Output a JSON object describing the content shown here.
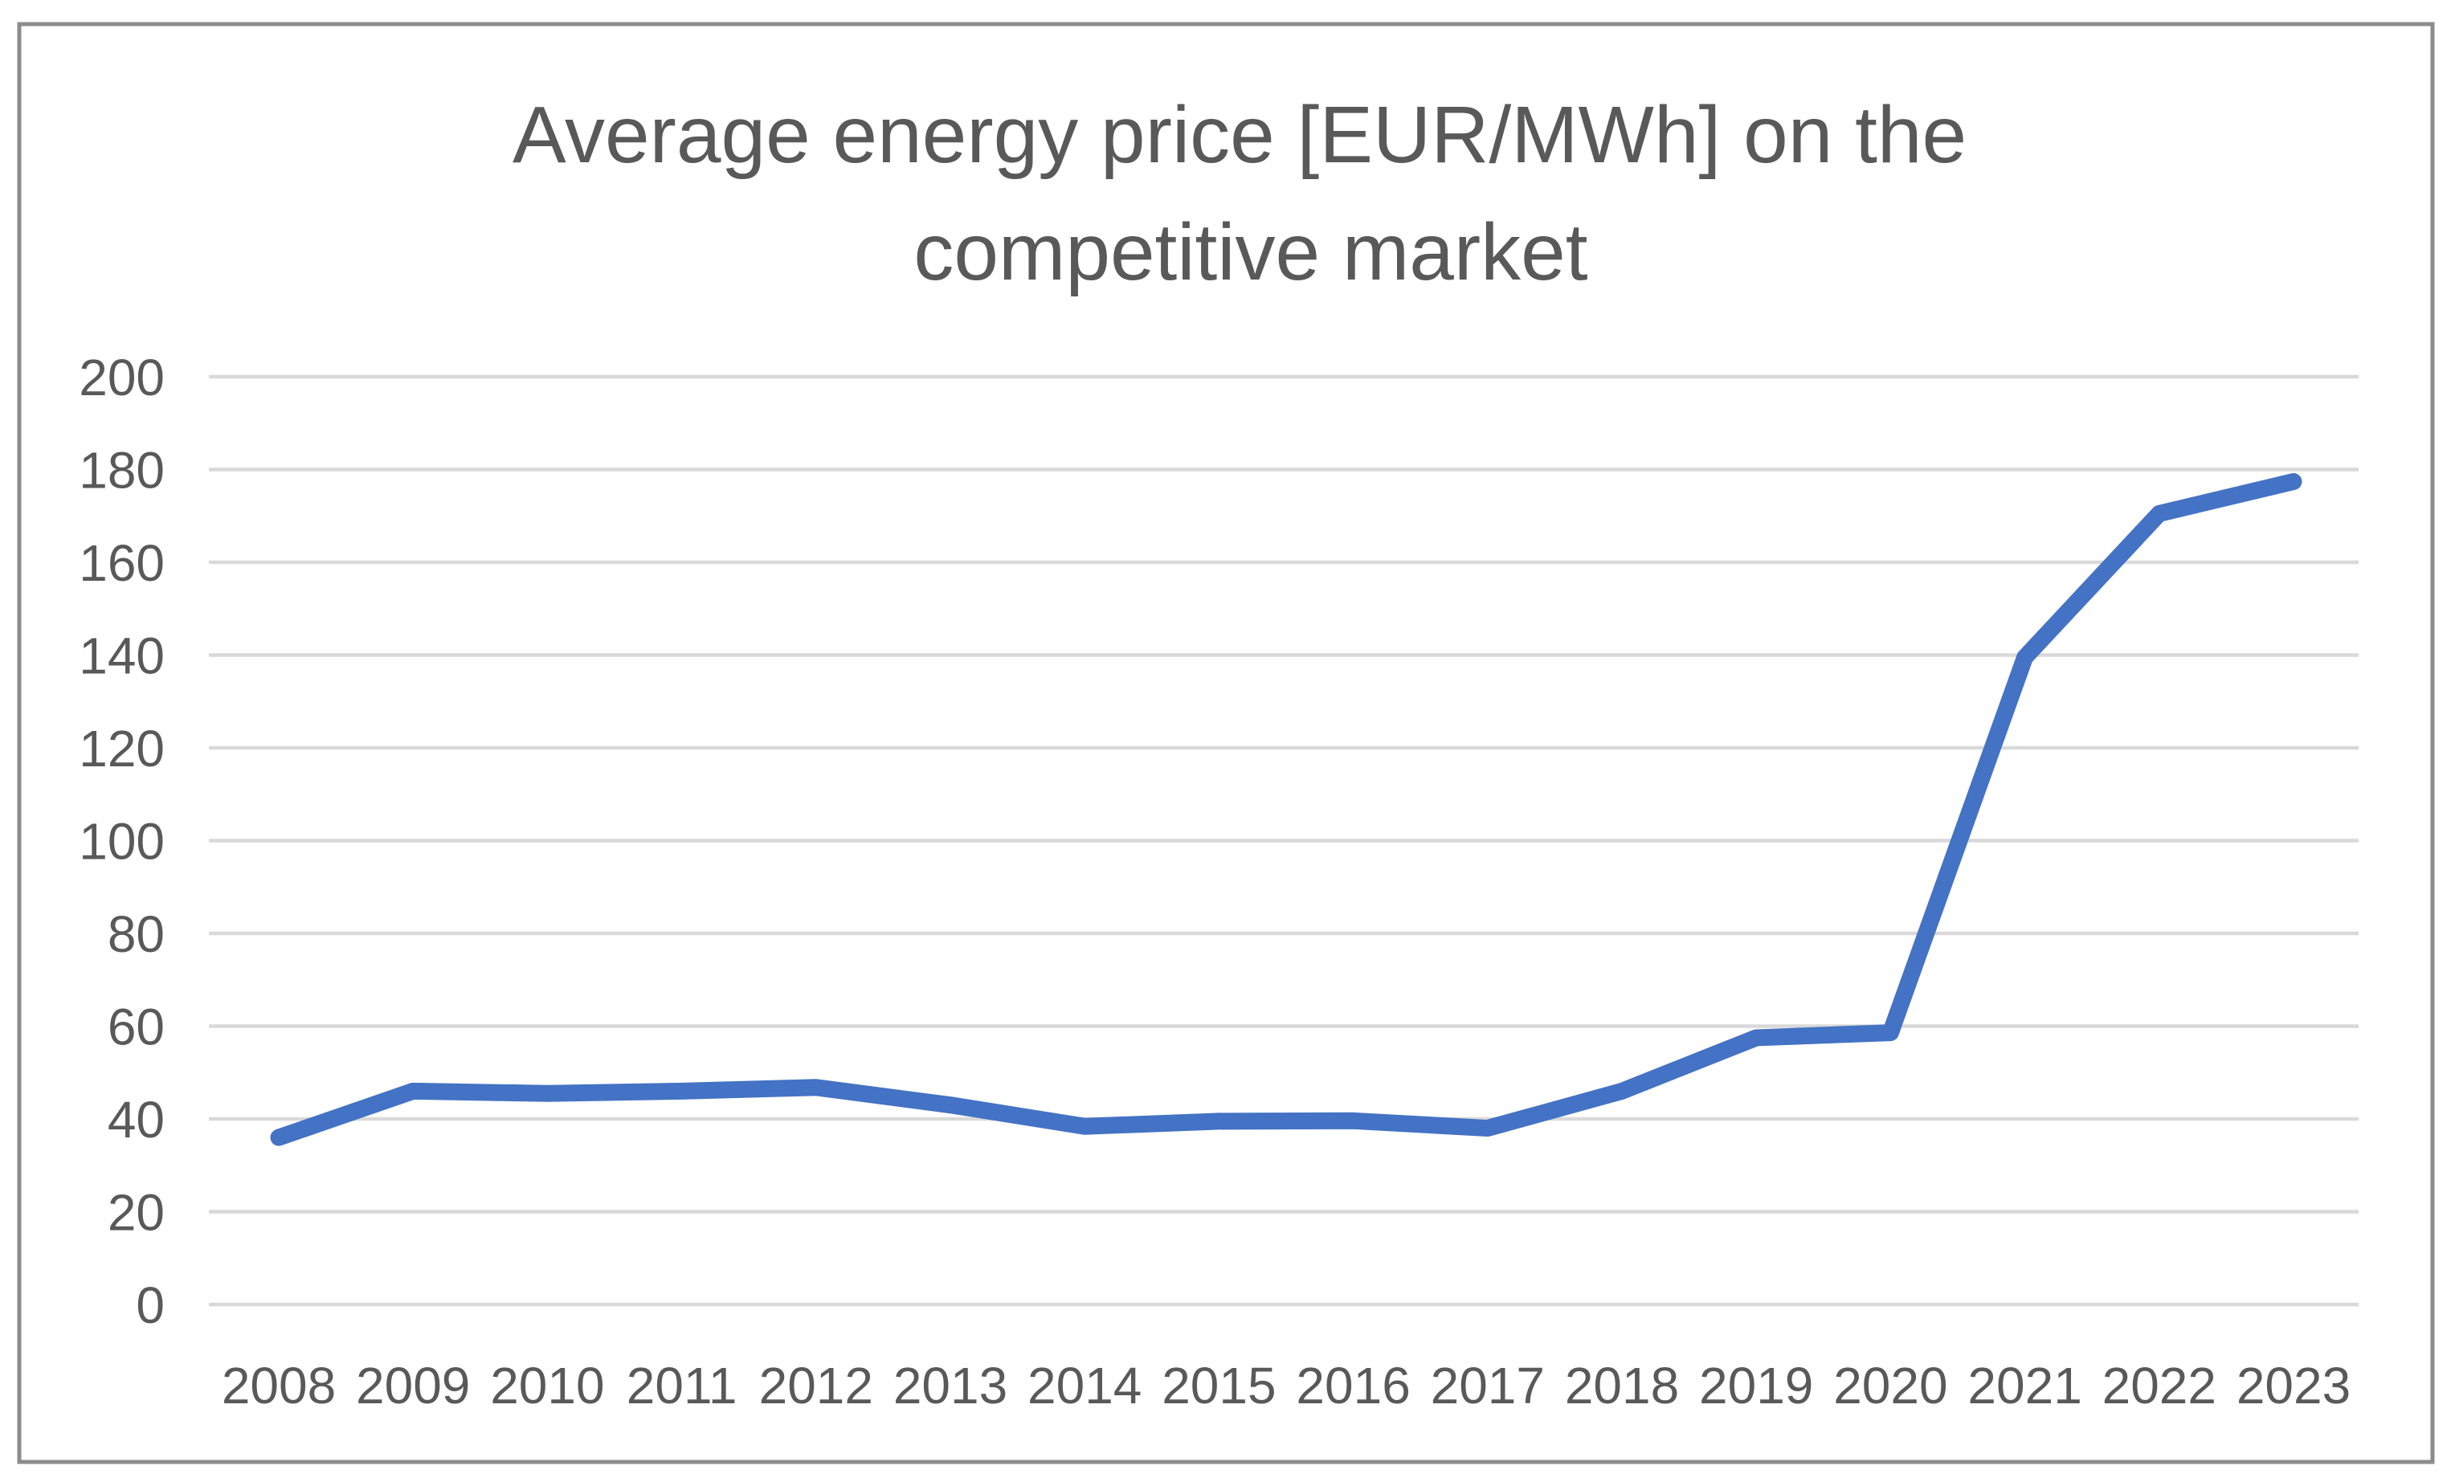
{
  "page": {
    "background": "#FFFFFF",
    "frame_color": "#8C8C8C"
  },
  "chart_data": {
    "type": "line",
    "title": "Average energy price [EUR/MWh] on the competitive market",
    "title_lines": [
      "Average energy price [EUR/MWh] on the",
      "competitive market"
    ],
    "categories": [
      "2008",
      "2009",
      "2010",
      "2011",
      "2012",
      "2013",
      "2014",
      "2015",
      "2016",
      "2017",
      "2018",
      "2019",
      "2020",
      "2021",
      "2022",
      "2023"
    ],
    "values": [
      36,
      46,
      45.5,
      46,
      46.8,
      43,
      38.4,
      39.5,
      39.6,
      38,
      46,
      57.5,
      58.6,
      139.5,
      170.5,
      177.4
    ],
    "ylim": [
      0,
      200
    ],
    "ytick_step": 20,
    "yticks": [
      "0",
      "20",
      "40",
      "60",
      "80",
      "100",
      "120",
      "140",
      "160",
      "180",
      "200"
    ],
    "xlabel": "",
    "ylabel": "",
    "legend": "none",
    "grid": "horizontal",
    "line_color": "#4472C4",
    "gridline_color": "#D9D9D9",
    "text_color": "#595959"
  }
}
